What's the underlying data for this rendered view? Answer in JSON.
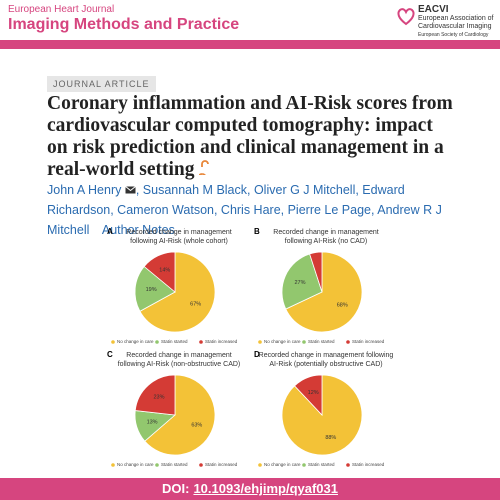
{
  "header": {
    "journal_line1": "European Heart Journal",
    "journal_line2": "Imaging Methods and Practice",
    "society_abbr": "EACVI",
    "society_name": [
      "European Association of",
      "Cardiovascular Imaging"
    ],
    "society_sub": "European Society of Cardiology"
  },
  "article": {
    "label": "JOURNAL ARTICLE",
    "title": "Coronary inflammation and AI-Risk scores from cardiovascular computed tomography: impact on risk prediction and clinical management in a real-world setting",
    "authors_first": "John A Henry",
    "authors_rest": ", Susannah M Black, Oliver G J Mitchell, Edward Richardson, Cameron Watson, Chris Hare, Pierre Le Page, Andrew R J Mitchell",
    "author_notes": "Author Notes"
  },
  "chart_data": [
    {
      "type": "pie",
      "panel": "A",
      "title": [
        "Recorded change in management",
        "following AI-Risk (whole cohort)"
      ],
      "categories": [
        "No change in care",
        "Statin started",
        "Statin increased"
      ],
      "colors": [
        "#f3c237",
        "#92c76e",
        "#d43b35"
      ],
      "values": [
        67,
        19,
        14
      ],
      "value_labels": [
        "67%",
        "19%",
        "14%"
      ]
    },
    {
      "type": "pie",
      "panel": "B",
      "title": [
        "Recorded change in management",
        "following AI-Risk (no CAD)"
      ],
      "categories": [
        "No change in care",
        "Statin started",
        "Statin increased"
      ],
      "colors": [
        "#f3c237",
        "#92c76e",
        "#d43b35"
      ],
      "values": [
        68,
        27,
        5
      ],
      "value_labels": [
        "68%",
        "27%",
        null
      ]
    },
    {
      "type": "pie",
      "panel": "C",
      "title": [
        "Recorded change in management",
        "following AI-Risk (non-obstructive CAD)"
      ],
      "categories": [
        "No change in care",
        "Statin started",
        "Statin increased"
      ],
      "colors": [
        "#f3c237",
        "#92c76e",
        "#d43b35"
      ],
      "values": [
        63,
        13,
        23
      ],
      "value_labels": [
        "63%",
        "13%",
        "23%"
      ]
    },
    {
      "type": "pie",
      "panel": "D",
      "title": [
        "Recorded change in management following",
        "AI-Risk (potentially obstructive CAD)"
      ],
      "categories": [
        "No change in care",
        "Statin started",
        "Statin increased"
      ],
      "colors": [
        "#f3c237",
        "#92c76e",
        "#d43b35"
      ],
      "values": [
        88,
        0,
        12
      ],
      "value_labels": [
        "88%",
        null,
        "12%"
      ]
    }
  ],
  "footer": {
    "doi_label": "DOI:",
    "doi": "10.1093/ehjimp/qyaf031"
  }
}
